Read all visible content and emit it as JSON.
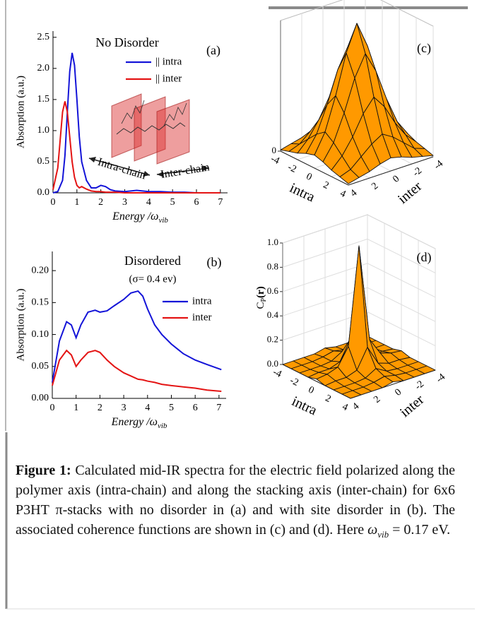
{
  "chart_data": [
    {
      "type": "line",
      "title": "No Disorder",
      "panel_label": "(a)",
      "ylabel": "Absorption (a.u.)",
      "xlabel": {
        "text": "Energy /ω",
        "sub": "vib"
      },
      "annotations": [
        "Intra-chain",
        "Inter-chain"
      ],
      "x": [
        0,
        0.2,
        0.4,
        0.5,
        0.6,
        0.7,
        0.8,
        0.9,
        1.0,
        1.1,
        1.2,
        1.4,
        1.6,
        1.8,
        2.0,
        2.2,
        2.4,
        2.6,
        3.0,
        3.5,
        4.0,
        4.5,
        5.0,
        5.5,
        6.0,
        6.5,
        7.0
      ],
      "series": [
        {
          "name": "|| intra",
          "color": "#1414d8",
          "values": [
            0,
            0.02,
            0.2,
            0.6,
            1.3,
            1.95,
            2.25,
            2.05,
            1.5,
            0.9,
            0.5,
            0.2,
            0.08,
            0.08,
            0.12,
            0.1,
            0.05,
            0.03,
            0.02,
            0.04,
            0.02,
            0.02,
            0.01,
            0.01,
            0,
            0,
            0
          ]
        },
        {
          "name": "|| inter",
          "color": "#e41414",
          "values": [
            0.05,
            0.4,
            1.3,
            1.47,
            1.3,
            0.9,
            0.5,
            0.25,
            0.12,
            0.08,
            0.1,
            0.06,
            0.03,
            0.02,
            0.02,
            0.01,
            0.01,
            0.01,
            0,
            0,
            0,
            0,
            0,
            0,
            0,
            0,
            0
          ]
        }
      ],
      "xlim": [
        0,
        7.3
      ],
      "xticks": [
        0,
        1,
        2,
        3,
        4,
        5,
        6,
        7
      ],
      "ylim": [
        0,
        2.6
      ],
      "yticks": [
        {
          "value": 0,
          "label": "0.0"
        },
        0.5,
        {
          "value": 1,
          "label": "1.0"
        },
        1.5,
        {
          "value": 2,
          "label": "2.0"
        },
        2.5
      ]
    },
    {
      "type": "line",
      "title": "Disordered",
      "subtitle": "(σ= 0.4 ev)",
      "panel_label": "(b)",
      "ylabel": "Absorption (a.u.)",
      "xlabel": {
        "text": "Energy /ω",
        "sub": "vib"
      },
      "x": [
        0,
        0.3,
        0.6,
        0.8,
        1.0,
        1.2,
        1.5,
        1.8,
        2.0,
        2.3,
        2.6,
        3.0,
        3.3,
        3.6,
        3.8,
        4.0,
        4.3,
        4.6,
        5.0,
        5.5,
        6.0,
        6.5,
        7.1
      ],
      "series": [
        {
          "name": "intra",
          "color": "#1414d8",
          "values": [
            0.025,
            0.09,
            0.12,
            0.115,
            0.095,
            0.115,
            0.135,
            0.138,
            0.135,
            0.137,
            0.145,
            0.155,
            0.165,
            0.168,
            0.16,
            0.14,
            0.115,
            0.1,
            0.085,
            0.07,
            0.06,
            0.053,
            0.045
          ]
        },
        {
          "name": "inter",
          "color": "#e41414",
          "values": [
            0.02,
            0.06,
            0.075,
            0.068,
            0.05,
            0.06,
            0.072,
            0.075,
            0.072,
            0.06,
            0.05,
            0.04,
            0.035,
            0.03,
            0.029,
            0.027,
            0.025,
            0.022,
            0.02,
            0.018,
            0.016,
            0.013,
            0.011
          ]
        }
      ],
      "xlim": [
        0,
        7.3
      ],
      "xticks": [
        0,
        1,
        2,
        3,
        4,
        5,
        6,
        7
      ],
      "ylim": [
        0,
        0.23
      ],
      "yticks": [
        {
          "value": 0,
          "label": "0.00"
        },
        0.05,
        {
          "value": 0.1,
          "label": "0.10"
        },
        0.15,
        {
          "value": 0.2,
          "label": "0.20"
        }
      ]
    },
    {
      "type": "surface",
      "panel_label": "(c)",
      "xlabel": "intra",
      "ylabel": "inter",
      "color": "#ff9900",
      "x": [
        -4,
        -3,
        -2,
        -1,
        0,
        1,
        2,
        3,
        4
      ],
      "y": [
        -4,
        -3,
        -2,
        -1,
        0,
        1,
        2,
        3,
        4
      ],
      "z": [
        [
          0.01,
          0.03,
          0.05,
          0.08,
          0.1,
          0.08,
          0.05,
          0.03,
          0.01
        ],
        [
          0.03,
          0.06,
          0.13,
          0.2,
          0.25,
          0.2,
          0.13,
          0.06,
          0.03
        ],
        [
          0.05,
          0.13,
          0.25,
          0.4,
          0.5,
          0.4,
          0.25,
          0.13,
          0.05
        ],
        [
          0.08,
          0.2,
          0.4,
          0.64,
          0.8,
          0.64,
          0.4,
          0.2,
          0.08
        ],
        [
          0.1,
          0.25,
          0.5,
          0.8,
          1,
          0.8,
          0.5,
          0.25,
          0.1
        ],
        [
          0.08,
          0.2,
          0.4,
          0.64,
          0.8,
          0.64,
          0.4,
          0.2,
          0.08
        ],
        [
          0.05,
          0.13,
          0.25,
          0.4,
          0.5,
          0.4,
          0.25,
          0.13,
          0.05
        ],
        [
          0.03,
          0.06,
          0.13,
          0.2,
          0.25,
          0.2,
          0.13,
          0.06,
          0.03
        ],
        [
          0.01,
          0.03,
          0.05,
          0.08,
          0.1,
          0.08,
          0.05,
          0.03,
          0.01
        ]
      ],
      "xlim": [
        -4,
        4
      ],
      "ylim": [
        -4,
        4
      ],
      "xticks": [
        -4,
        -2,
        0,
        2,
        4
      ],
      "yticks": [
        -4,
        -2,
        0,
        2,
        4
      ],
      "zlim": [
        0,
        1
      ],
      "zticks": [
        0
      ]
    },
    {
      "type": "surface",
      "panel_label": "(d)",
      "xlabel": "intra",
      "ylabel": "inter",
      "color": "#ff9900",
      "zlabel": {
        "text": "C",
        "sub": "P",
        "tail": "(r)"
      },
      "x": [
        -4,
        -3,
        -2,
        -1,
        0,
        1,
        2,
        3,
        4
      ],
      "y": [
        -4,
        -3,
        -2,
        -1,
        0,
        1,
        2,
        3,
        4
      ],
      "z": [
        [
          0,
          0,
          0,
          0,
          0.02,
          0,
          0,
          0,
          0
        ],
        [
          0,
          0,
          0,
          0.01,
          0.03,
          0.01,
          0,
          0,
          0
        ],
        [
          0,
          0,
          0,
          0.01,
          0.06,
          0.01,
          0,
          0,
          0
        ],
        [
          0,
          0.01,
          0.01,
          0.04,
          0.2,
          0.04,
          0.01,
          0.01,
          0
        ],
        [
          0.02,
          0.03,
          0.06,
          0.2,
          1,
          0.2,
          0.06,
          0.03,
          0.02
        ],
        [
          0,
          0.01,
          0.01,
          0.04,
          0.2,
          0.04,
          0.01,
          0.01,
          0
        ],
        [
          0,
          0,
          0,
          0.01,
          0.06,
          0.01,
          0,
          0,
          0
        ],
        [
          0,
          0,
          0,
          0.01,
          0.03,
          0.01,
          0,
          0,
          0
        ],
        [
          0,
          0,
          0,
          0,
          0.02,
          0,
          0,
          0,
          0
        ]
      ],
      "xlim": [
        -4,
        4
      ],
      "ylim": [
        -4,
        4
      ],
      "xticks": [
        -4,
        -2,
        0,
        2,
        4
      ],
      "yticks": [
        -4,
        -2,
        0,
        2,
        4
      ],
      "zlim": [
        0,
        1
      ],
      "zticks": [
        {
          "value": 0,
          "label": "0.0"
        },
        0.2,
        0.4,
        0.6,
        0.8,
        {
          "value": 1,
          "label": "1.0"
        }
      ]
    }
  ],
  "caption": {
    "label": "Figure 1:",
    "text": " Calculated mid-IR spectra for the electric field polarized along the polymer axis (intra-chain) and along the stacking axis (inter-chain) for 6x6 P3HT π-stacks with no disorder in (a) and with site disorder in (b). The associated coherence functions are shown in (c) and (d). Here ",
    "symbol": "ω",
    "sub": "vib",
    "tail": " = 0.17 eV."
  }
}
